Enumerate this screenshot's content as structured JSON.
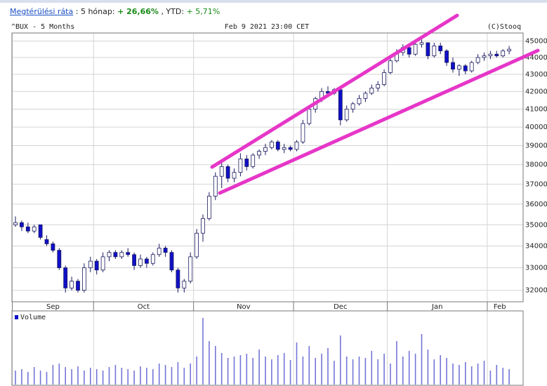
{
  "chart_data": {
    "type": "candlestick",
    "stats": {
      "link": "Megtérülési ráta",
      "period_label": ": 5 hónap:",
      "period_value": "+ 26,66%",
      "ytd_label": ", YTD:",
      "ytd_value": "+ 5,71%"
    },
    "title": "^BUX - 5 Months",
    "subtitle": "Feb 9 2021 23:00 CET",
    "source": "(C)Stooq",
    "log_scale": true,
    "grid": true,
    "up_color": "#ffffff",
    "down_color": "#1010c8",
    "edge_color": "#1a1a60",
    "ylim": [
      31500,
      45500
    ],
    "yticks": [
      32000,
      33000,
      34000,
      35000,
      36000,
      37000,
      38000,
      39000,
      40000,
      41000,
      42000,
      43000,
      44000,
      45000
    ],
    "categories": [
      "Sep",
      null,
      null,
      null,
      null,
      null,
      null,
      null,
      null,
      null,
      null,
      null,
      null,
      "Oct",
      null,
      null,
      null,
      null,
      null,
      null,
      null,
      null,
      null,
      null,
      null,
      null,
      null,
      null,
      null,
      "Nov",
      null,
      null,
      null,
      null,
      null,
      null,
      null,
      null,
      null,
      null,
      null,
      null,
      null,
      null,
      null,
      "Dec",
      null,
      null,
      null,
      null,
      null,
      null,
      null,
      null,
      null,
      null,
      null,
      null,
      null,
      null,
      "Jan",
      null,
      null,
      null,
      null,
      null,
      null,
      null,
      null,
      null,
      null,
      null,
      null,
      null,
      null,
      null,
      "Feb",
      null,
      null,
      null
    ],
    "candles": [
      [
        35000,
        35400,
        34900,
        35100
      ],
      [
        35100,
        35200,
        34700,
        34900
      ],
      [
        34900,
        35100,
        34600,
        34700
      ],
      [
        34700,
        35000,
        34600,
        34900
      ],
      [
        35000,
        35000,
        34300,
        34400
      ],
      [
        34300,
        34500,
        34000,
        34100
      ],
      [
        34100,
        34200,
        33700,
        33800
      ],
      [
        33800,
        33900,
        32900,
        33000
      ],
      [
        33000,
        33100,
        31900,
        32100
      ],
      [
        32100,
        32600,
        32000,
        32400
      ],
      [
        32400,
        32500,
        31900,
        32000
      ],
      [
        32000,
        33200,
        31900,
        33000
      ],
      [
        33000,
        33500,
        32800,
        33300
      ],
      [
        33300,
        33400,
        32700,
        32900
      ],
      [
        32900,
        33700,
        32800,
        33500
      ],
      [
        33500,
        33800,
        33300,
        33700
      ],
      [
        33700,
        33800,
        33400,
        33500
      ],
      [
        33500,
        33800,
        33400,
        33700
      ],
      [
        33700,
        33900,
        33500,
        33600
      ],
      [
        33600,
        33700,
        32900,
        33100
      ],
      [
        33100,
        33600,
        33000,
        33400
      ],
      [
        33400,
        33500,
        33000,
        33200
      ],
      [
        33200,
        33700,
        33100,
        33600
      ],
      [
        33600,
        34100,
        33500,
        33900
      ],
      [
        33900,
        34000,
        33500,
        33700
      ],
      [
        33700,
        33800,
        32800,
        32900
      ],
      [
        32900,
        33000,
        31900,
        32100
      ],
      [
        32100,
        32500,
        31900,
        32400
      ],
      [
        32400,
        33700,
        32300,
        33500
      ],
      [
        33500,
        34800,
        33400,
        34600
      ],
      [
        34600,
        35500,
        34200,
        35300
      ],
      [
        35300,
        36600,
        35200,
        36400
      ],
      [
        36400,
        37600,
        36200,
        37400
      ],
      [
        37400,
        38100,
        36800,
        37900
      ],
      [
        37900,
        38000,
        37100,
        37300
      ],
      [
        37300,
        37800,
        37100,
        37600
      ],
      [
        37600,
        38600,
        37400,
        38300
      ],
      [
        38300,
        38500,
        37700,
        37900
      ],
      [
        37900,
        38600,
        37800,
        38500
      ],
      [
        38500,
        38800,
        38300,
        38700
      ],
      [
        38700,
        39100,
        38500,
        38900
      ],
      [
        38900,
        39300,
        38800,
        39200
      ],
      [
        39200,
        39300,
        38700,
        38800
      ],
      [
        38800,
        39100,
        38600,
        38900
      ],
      [
        38900,
        39000,
        38700,
        38800
      ],
      [
        38800,
        39300,
        38700,
        39200
      ],
      [
        39200,
        40400,
        39100,
        40200
      ],
      [
        40200,
        41200,
        40100,
        41000
      ],
      [
        41000,
        41700,
        40800,
        41600
      ],
      [
        41600,
        42200,
        41400,
        42000
      ],
      [
        42000,
        42300,
        41700,
        41900
      ],
      [
        41900,
        42200,
        41800,
        42100
      ],
      [
        42100,
        42100,
        40100,
        40400
      ],
      [
        40400,
        41200,
        40300,
        41000
      ],
      [
        41000,
        41400,
        40800,
        41300
      ],
      [
        41300,
        41800,
        41200,
        41600
      ],
      [
        41600,
        42000,
        41400,
        41900
      ],
      [
        41900,
        42400,
        41800,
        42200
      ],
      [
        42200,
        42600,
        42000,
        42400
      ],
      [
        42400,
        43300,
        42300,
        43100
      ],
      [
        43100,
        44000,
        43000,
        43800
      ],
      [
        43800,
        44500,
        43700,
        44300
      ],
      [
        44300,
        44800,
        44100,
        44600
      ],
      [
        44600,
        44800,
        44000,
        44200
      ],
      [
        44200,
        45000,
        44100,
        44800
      ],
      [
        44800,
        45100,
        44600,
        44900
      ],
      [
        44900,
        44900,
        43900,
        44100
      ],
      [
        44100,
        44900,
        44000,
        44700
      ],
      [
        44700,
        44900,
        44200,
        44400
      ],
      [
        44400,
        44500,
        43500,
        43700
      ],
      [
        43700,
        44000,
        43100,
        43300
      ],
      [
        43300,
        43600,
        42900,
        43500
      ],
      [
        43500,
        43600,
        43000,
        43200
      ],
      [
        43200,
        43800,
        43100,
        43700
      ],
      [
        43700,
        44200,
        43600,
        44000
      ],
      [
        44000,
        44300,
        43800,
        44100
      ],
      [
        44100,
        44400,
        43900,
        44200
      ],
      [
        44200,
        44400,
        44000,
        44100
      ],
      [
        44100,
        44500,
        44000,
        44400
      ],
      [
        44400,
        44700,
        44200,
        44500
      ]
    ],
    "volume": {
      "name": "Volume",
      "color": "#7474d8",
      "ylim": [
        0,
        100
      ],
      "values": [
        20,
        22,
        18,
        25,
        20,
        18,
        28,
        30,
        25,
        22,
        26,
        20,
        24,
        22,
        20,
        25,
        28,
        24,
        22,
        20,
        26,
        24,
        22,
        30,
        28,
        25,
        32,
        24,
        30,
        40,
        95,
        62,
        55,
        45,
        38,
        40,
        42,
        44,
        38,
        50,
        40,
        36,
        42,
        45,
        35,
        60,
        40,
        55,
        38,
        44,
        52,
        34,
        70,
        40,
        36,
        40,
        38,
        48,
        36,
        44,
        30,
        62,
        40,
        48,
        44,
        72,
        50,
        36,
        42,
        38,
        30,
        28,
        32,
        26,
        30,
        34,
        20,
        28,
        24,
        22
      ]
    }
  }
}
